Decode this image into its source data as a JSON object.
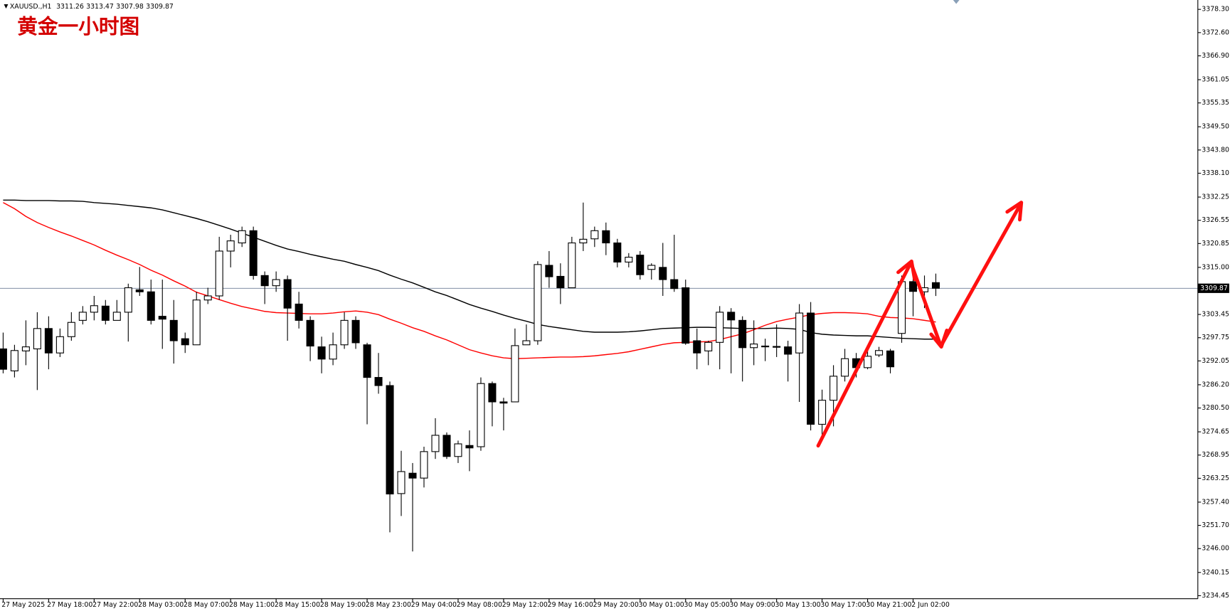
{
  "chart_data": {
    "type": "candlestick",
    "symbol": "XAUUSD.,H1",
    "title": "黄金一小时图",
    "categories": [
      "27 May 2025",
      null,
      null,
      null,
      "27 May 18:00",
      null,
      null,
      null,
      "27 May 22:00",
      null,
      null,
      null,
      "28 May 03:00",
      null,
      null,
      null,
      "28 May 07:00",
      null,
      null,
      null,
      "28 May 11:00",
      null,
      null,
      null,
      "28 May 15:00",
      null,
      null,
      null,
      "28 May 19:00",
      null,
      null,
      null,
      "28 May 23:00",
      null,
      null,
      null,
      "29 May 04:00",
      null,
      null,
      null,
      "29 May 08:00",
      null,
      null,
      null,
      "29 May 12:00",
      null,
      null,
      null,
      "29 May 16:00",
      null,
      null,
      null,
      "29 May 20:00",
      null,
      null,
      null,
      "30 May 01:00",
      null,
      null,
      null,
      "30 May 05:00",
      null,
      null,
      null,
      "30 May 09:00",
      null,
      null,
      null,
      "30 May 13:00",
      null,
      null,
      null,
      "30 May 17:00",
      null,
      null,
      null,
      "30 May 21:00",
      null,
      null,
      null,
      "2 Jun 02:00",
      null,
      null
    ],
    "open": [
      3295,
      3289.6,
      3294.5,
      3295,
      3300,
      3294,
      3298,
      3302,
      3304,
      3305.5,
      3302,
      3304,
      3309.5,
      3309,
      3303,
      3302,
      3297.5,
      3296,
      3307,
      3308,
      3319,
      3321,
      3324,
      3313,
      3310.5,
      3312,
      3306,
      3302,
      3295.5,
      3292.5,
      3296,
      3302,
      3296,
      3288,
      3286,
      3259.5,
      3264.5,
      3263.3,
      3269.8,
      3273.8,
      3268.6,
      3271.3,
      3271,
      3286.5,
      3282,
      3282,
      3296,
      3297,
      3315.5,
      3312.8,
      3310,
      3321,
      3322,
      3324,
      3321,
      3316.3,
      3318,
      3314.5,
      3315,
      3312,
      3310,
      3297,
      3294.5,
      3296.6,
      3304,
      3302,
      3295.3,
      3295.7,
      3295.6,
      3295.5,
      3294,
      3303.8,
      3276.5,
      3282.4,
      3288.3,
      3292.6,
      3290.4,
      3293.5,
      3294.5,
      3298.8,
      3311.5,
      3309,
      3311.26
    ],
    "high": [
      3299,
      3296,
      3302,
      3304,
      3303,
      3300,
      3304,
      3305.5,
      3308,
      3307,
      3307,
      3311,
      3315.1,
      3312,
      3312,
      3307,
      3299,
      3309,
      3310,
      3322.5,
      3323,
      3325,
      3325,
      3314,
      3314,
      3313,
      3309,
      3303,
      3298,
      3299,
      3304,
      3303,
      3296.5,
      3294,
      3287,
      3270,
      3267,
      3271,
      3278,
      3274.5,
      3272.5,
      3275,
      3288,
      3287,
      3283,
      3300,
      3301,
      3316.5,
      3319,
      3316,
      3322.5,
      3330.9,
      3325,
      3326,
      3322,
      3318.5,
      3319,
      3316,
      3321,
      3323,
      3312,
      3300,
      3297,
      3305.5,
      3305,
      3303,
      3302,
      3297.5,
      3301,
      3297,
      3306,
      3306.5,
      3285,
      3291,
      3295,
      3294,
      3295.5,
      3295.5,
      3295,
      3313,
      3313.5,
      3313,
      3313.47
    ],
    "low": [
      3289,
      3288,
      3291,
      3284.9,
      3290,
      3293,
      3297,
      3301,
      3302,
      3301,
      3302,
      3296.8,
      3308,
      3301,
      3295,
      3291.4,
      3294,
      3296,
      3306,
      3307,
      3315,
      3320,
      3312,
      3306,
      3309,
      3297,
      3300,
      3292,
      3289,
      3291,
      3295,
      3295,
      3276.5,
      3284,
      3250,
      3254,
      3245.3,
      3261,
      3268,
      3268,
      3267,
      3265,
      3270,
      3276,
      3275,
      3282,
      3296,
      3296,
      3310,
      3306,
      3310,
      3319,
      3320,
      3318,
      3315,
      3315,
      3312,
      3312,
      3308,
      3309,
      3296,
      3290,
      3291,
      3290,
      3289,
      3287,
      3291,
      3292,
      3293,
      3287,
      3282,
      3275,
      3273,
      3276,
      3287,
      3288,
      3290,
      3293,
      3289,
      3296.5,
      3303,
      3305,
      3307.98
    ],
    "close": [
      3290,
      3294.6,
      3295.5,
      3300,
      3294,
      3298,
      3301.5,
      3304,
      3305.6,
      3302,
      3304,
      3310,
      3309,
      3302,
      3302.3,
      3297,
      3296,
      3307,
      3308,
      3319,
      3321.5,
      3324,
      3313,
      3310.5,
      3312,
      3305,
      3302,
      3295.7,
      3292.5,
      3296,
      3302,
      3296.5,
      3288,
      3286,
      3259.4,
      3264.9,
      3263.3,
      3269.8,
      3273.8,
      3268.6,
      3271.7,
      3270.7,
      3286.5,
      3282,
      3281.7,
      3295.8,
      3297,
      3315.7,
      3312.7,
      3310,
      3321,
      3321.9,
      3324,
      3321,
      3316.3,
      3317.5,
      3313.2,
      3315.5,
      3312,
      3309.8,
      3296.4,
      3294,
      3296.6,
      3304,
      3302.1,
      3295.3,
      3296.2,
      3295.5,
      3295.4,
      3293.7,
      3303.8,
      3276.5,
      3282.4,
      3288.3,
      3292.6,
      3290.4,
      3293.2,
      3294.6,
      3290.6,
      3311.5,
      3309.1,
      3310,
      3309.87
    ],
    "overlays": [
      {
        "color": "#000000",
        "values": [
          3331.5,
          3331.5,
          3331.4,
          3331.4,
          3331.4,
          3331.3,
          3331.3,
          3331.2,
          3330.9,
          3330.7,
          3330.5,
          3330.2,
          3329.9,
          3329.6,
          3329.1,
          3328.4,
          3327.7,
          3327.0,
          3326.2,
          3325.3,
          3324.4,
          3323.4,
          3322.4,
          3321.4,
          3320.4,
          3319.5,
          3318.9,
          3318.2,
          3317.6,
          3317.0,
          3316.5,
          3315.7,
          3315.0,
          3314.2,
          3313.1,
          3312.1,
          3311.2,
          3310.1,
          3309.0,
          3308.1,
          3307.0,
          3305.9,
          3305.0,
          3304.2,
          3303.3,
          3302.5,
          3301.8,
          3301.0,
          3300.5,
          3300.1,
          3299.7,
          3299.3,
          3299.1,
          3299.1,
          3299.1,
          3299.2,
          3299.4,
          3299.7,
          3300.0,
          3300.1,
          3300.2,
          3300.3,
          3300.3,
          3300.2,
          3300.1,
          3300.0,
          3300.0,
          3300.0,
          3300.1,
          3300.0,
          3299.8,
          3299.0,
          3298.6,
          3298.4,
          3298.3,
          3298.2,
          3298.2,
          3298.0,
          3297.8,
          3297.6,
          3297.5,
          3297.4,
          3297.4
        ]
      },
      {
        "color": "#ff0000",
        "values": [
          3330.9,
          3329.4,
          3327.5,
          3326.0,
          3324.8,
          3323.7,
          3322.7,
          3321.6,
          3320.5,
          3319.2,
          3318.0,
          3316.9,
          3315.7,
          3314.3,
          3313.1,
          3311.7,
          3310.4,
          3308.9,
          3308.0,
          3307.1,
          3306.2,
          3305.4,
          3304.8,
          3304.2,
          3303.9,
          3303.8,
          3303.7,
          3303.6,
          3303.6,
          3303.8,
          3304.1,
          3304.3,
          3304.0,
          3303.4,
          3302.3,
          3301.3,
          3300.2,
          3299.3,
          3298.2,
          3297.2,
          3296.0,
          3294.8,
          3294.0,
          3293.3,
          3292.8,
          3292.6,
          3292.7,
          3292.8,
          3292.9,
          3293.0,
          3293.0,
          3293.1,
          3293.3,
          3293.6,
          3293.9,
          3294.3,
          3294.9,
          3295.5,
          3296.1,
          3296.5,
          3296.6,
          3296.7,
          3296.8,
          3297.3,
          3298.0,
          3298.7,
          3299.7,
          3300.8,
          3301.7,
          3302.3,
          3302.8,
          3303.4,
          3303.7,
          3303.9,
          3303.9,
          3303.8,
          3303.6,
          3303.0,
          3302.7,
          3302.6,
          3302.4,
          3302.0,
          3301.6
        ]
      }
    ],
    "ylim": [
      3233.7,
      3380.6
    ],
    "yticks": [
      {
        "value": 3378.3,
        "label": "3378.30"
      },
      {
        "value": 3372.6,
        "label": "3372.60"
      },
      {
        "value": 3366.9,
        "label": "3366.90"
      },
      3361.05,
      3355.35,
      {
        "value": 3349.5,
        "label": "3349.50"
      },
      {
        "value": 3343.8,
        "label": "3343.80"
      },
      {
        "value": 3338.1,
        "label": "3338.10"
      },
      3332.25,
      3326.55,
      3320.85,
      {
        "value": 3315,
        "label": "3315.00"
      },
      3303.45,
      3297.75,
      3292.05,
      {
        "value": 3286.2,
        "label": "3286.20"
      },
      {
        "value": 3280.5,
        "label": "3280.50"
      },
      3274.65,
      3268.95,
      3263.25,
      {
        "value": 3257.4,
        "label": "3257.40"
      },
      {
        "value": 3251.7,
        "label": "3251.70"
      },
      {
        "value": 3246,
        "label": "3246.00"
      },
      3240.15,
      3234.45
    ]
  }
}
